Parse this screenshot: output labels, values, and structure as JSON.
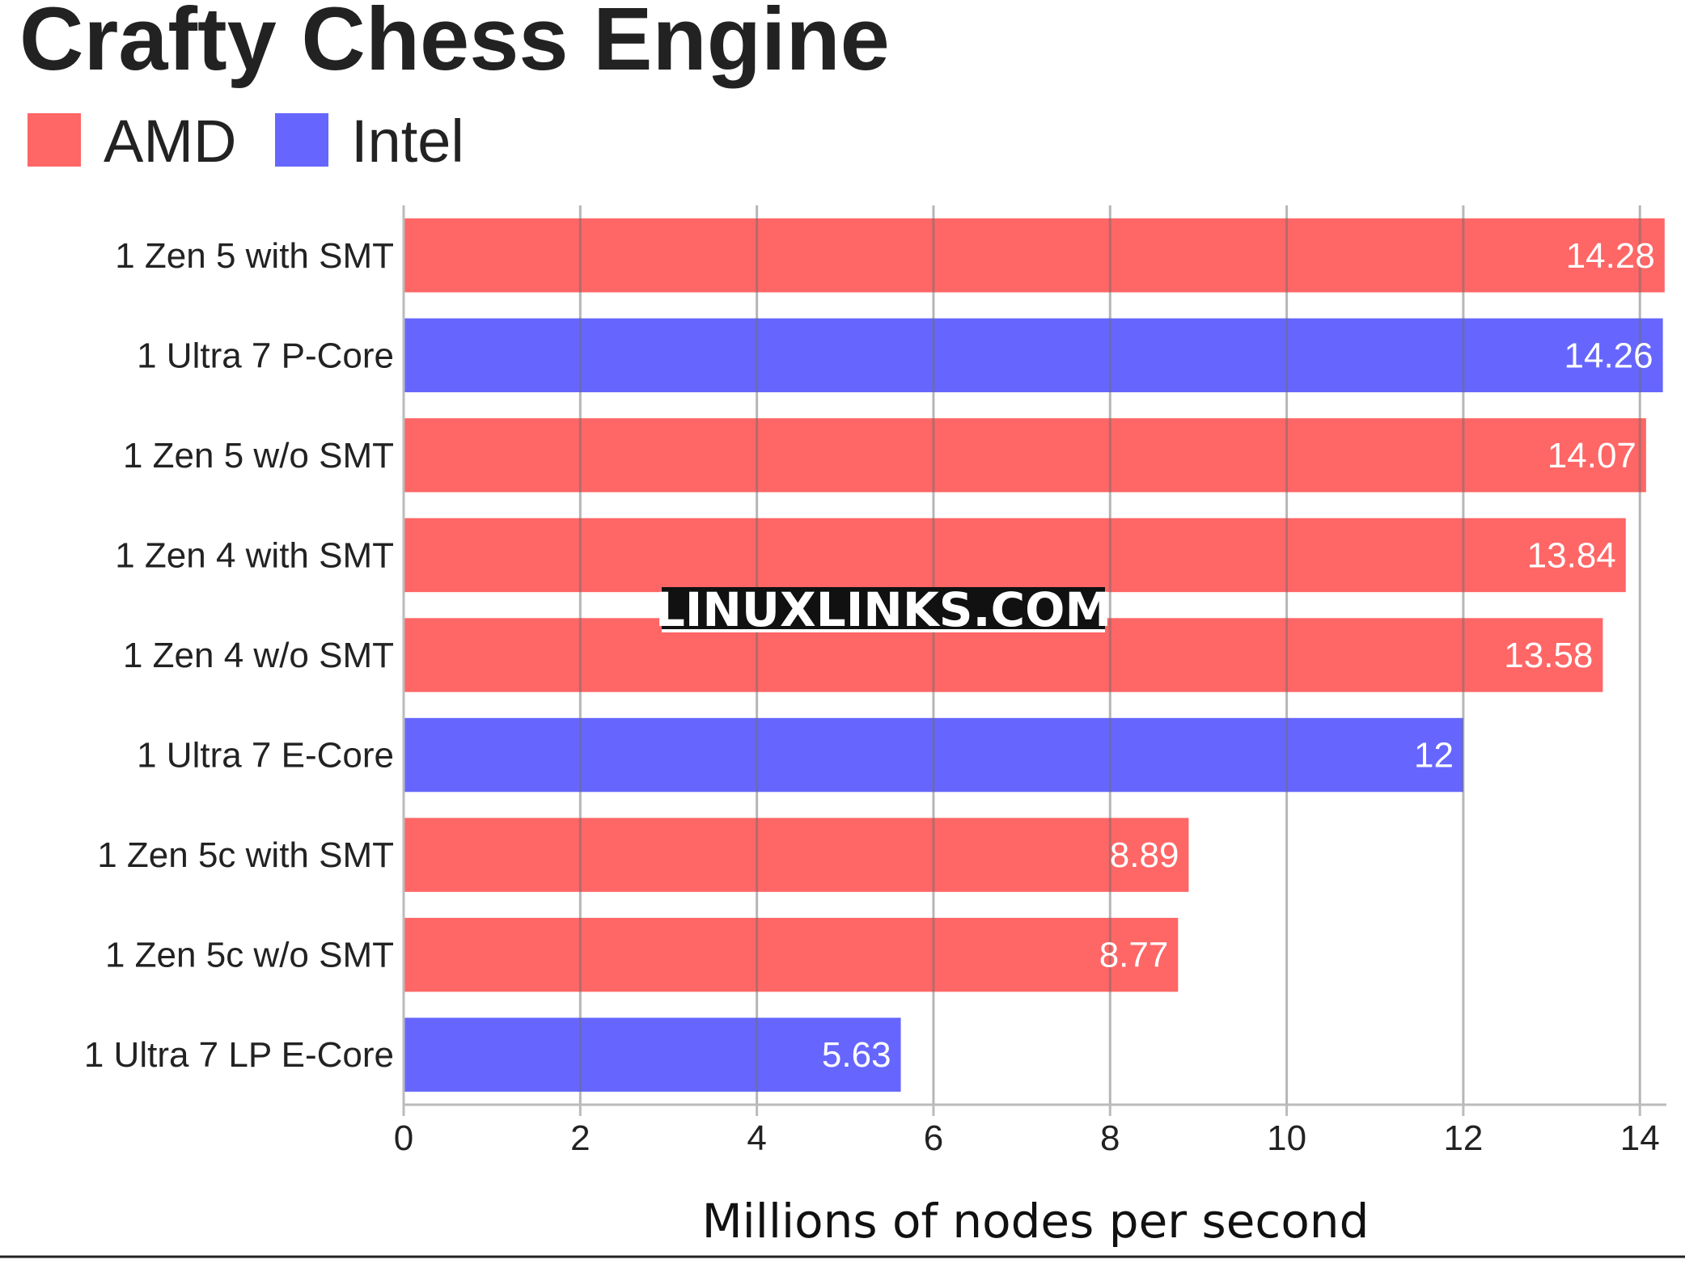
{
  "chart_data": {
    "type": "bar",
    "orientation": "horizontal",
    "title": "Crafty Chess Engine",
    "xlabel": "Millions of nodes per second",
    "ylabel": "",
    "xlim": [
      0,
      14.3
    ],
    "ticks": [
      0,
      2,
      4,
      6,
      8,
      10,
      12,
      14
    ],
    "grid": true,
    "legend_position": "top-left",
    "legend": [
      {
        "name": "AMD",
        "color": "#ff6666"
      },
      {
        "name": "Intel",
        "color": "#6666ff"
      }
    ],
    "categories": [
      "1 Zen 5 with SMT",
      "1 Ultra 7 P-Core",
      "1 Zen 5 w/o SMT",
      "1 Zen 4 with SMT",
      "1 Zen 4 w/o SMT",
      "1 Ultra 7 E-Core",
      "1 Zen 5c with SMT",
      "1 Zen 5c w/o SMT",
      "1 Ultra 7 LP E-Core"
    ],
    "values": [
      14.28,
      14.26,
      14.07,
      13.84,
      13.58,
      12,
      8.89,
      8.77,
      5.63
    ],
    "value_labels": [
      "14.28",
      "14.26",
      "14.07",
      "13.84",
      "13.58",
      "12",
      "8.89",
      "8.77",
      "5.63"
    ],
    "vendor": [
      "AMD",
      "Intel",
      "AMD",
      "AMD",
      "AMD",
      "Intel",
      "AMD",
      "AMD",
      "Intel"
    ]
  },
  "watermark": "LINUXLINKS.COM"
}
